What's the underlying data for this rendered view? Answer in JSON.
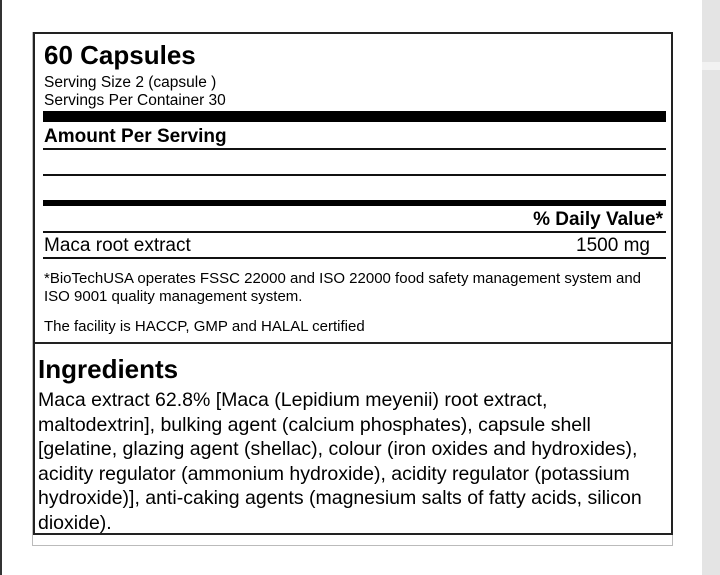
{
  "label": {
    "title": "60 Capsules",
    "serving_size": "Serving Size 2  (capsule )",
    "servings_per_container": "Servings Per Container 30",
    "amount_per_serving": "Amount Per Serving",
    "daily_value_header": "% Daily Value*",
    "rows": [
      {
        "name": "Maca root extract",
        "amount": "1500 mg"
      }
    ],
    "footnote": "*BioTechUSA operates FSSC 22000 and ISO 22000 food safety management system and ISO 9001 quality management system.",
    "facility": "The facility is HACCP, GMP and HALAL certified"
  },
  "ingredients": {
    "heading": "Ingredients",
    "text": "Maca extract 62.8% [Maca (Lepidium meyenii) root extract, maltodextrin], bulking agent (calcium phosphates), capsule shell [gelatine, glazing agent (shellac), colour (iron oxides and hydroxides), acidity regulator (ammonium hydroxide), acidity regulator (potassium hydroxide)], anti-caking agents (magnesium salts of fatty acids, silicon dioxide)."
  }
}
